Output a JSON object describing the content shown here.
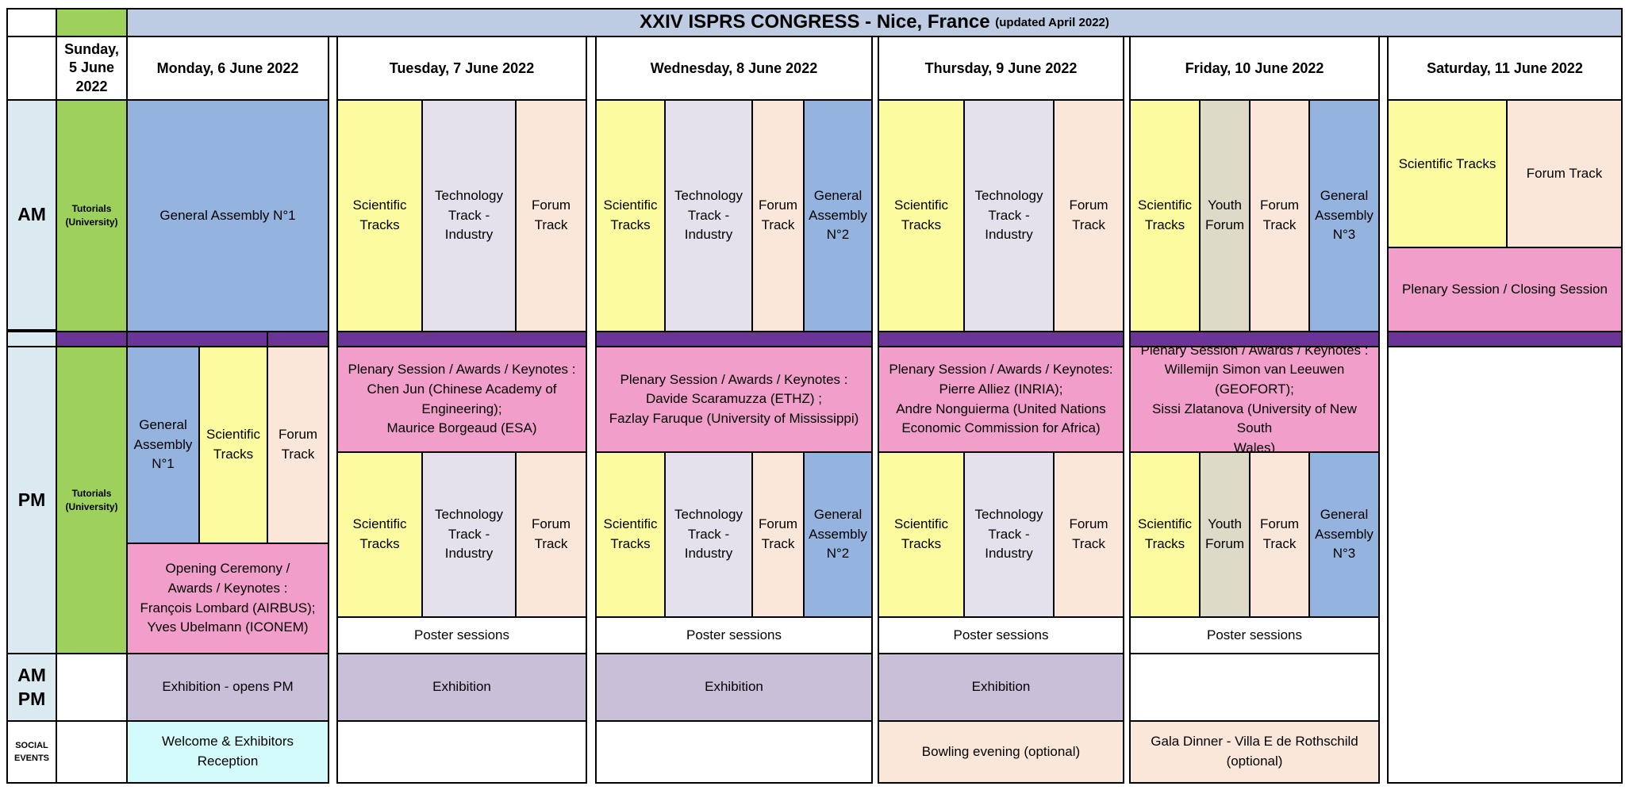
{
  "colors": {
    "yellow": "#fcfba0",
    "lavender": "#e4e1ec",
    "peach": "#fbe7da",
    "blue": "#94b3de",
    "pink": "#f19fca",
    "green": "#9dd15c",
    "sky": "#daeaf0",
    "khaki": "#dddbc7",
    "exhibit": "#cabfd9",
    "cyan": "#d4fbfc",
    "band": "#6b3597",
    "titlebar": "#bdcbe3"
  },
  "title": {
    "main": "XXIV ISPRS CONGRESS - Nice, France",
    "note": "(updated April 2022)"
  },
  "days": {
    "sunday": "Sunday,\n5 June\n2022",
    "monday": "Monday,  6 June 2022",
    "tuesday": "Tuesday,  7 June 2022",
    "wednesday": "Wednesday, 8 June 2022",
    "thursday": "Thursday, 9 June 2022",
    "friday": "Friday, 10 June 2022",
    "saturday": "Saturday,  11 June 2022"
  },
  "rows": {
    "am": "AM",
    "pm": "PM",
    "ampm": "AM\nPM",
    "social": "SOCIAL\nEVENTS"
  },
  "sessions": {
    "tutorials": "Tutorials\n(University)",
    "general_assembly_1": "General Assembly N°1",
    "general_assembly_1_short": "General\nAssembly\nN°1",
    "general_assembly_2": "General\nAssembly\nN°2",
    "general_assembly_3": "General\nAssembly\nN°3",
    "scientific_tracks": "Scientific\nTracks",
    "scientific_tracks_sat": "Scientific Tracks",
    "technology_track": "Technology\nTrack -\nIndustry",
    "forum_track": "Forum\nTrack",
    "forum_track_sat": "Forum Track",
    "youth_forum": "Youth\nForum",
    "closing": "Plenary Session / Closing Session",
    "opening": "Opening Ceremony /\nAwards / Keynotes :\nFrançois Lombard (AIRBUS);\nYves Ubelmann (ICONEM)",
    "plenary_tue": "Plenary Session / Awards / Keynotes :\nChen Jun (Chinese Academy of\nEngineering);\nMaurice Borgeaud (ESA)",
    "plenary_wed": "Plenary Session / Awards / Keynotes :\nDavide Scaramuzza (ETHZ) ;\nFazlay Faruque (University of Mississippi)",
    "plenary_thu": "Plenary Session / Awards / Keynotes:\nPierre Alliez (INRIA);\nAndre Nonguierma (United Nations\nEconomic Commission for Africa)",
    "plenary_fri": "Plenary Session / Awards / Keynotes :\nWillemijn Simon van Leeuwen\n(GEOFORT);\nSissi Zlatanova (University of New South\nWales)",
    "poster": "Poster sessions",
    "exhibition_opens": "Exhibition - opens PM",
    "exhibition": "Exhibition",
    "welcome": "Welcome & Exhibitors\nReception",
    "bowling": "Bowling evening (optional)",
    "gala": "Gala Dinner - Villa E de Rothschild\n(optional)"
  }
}
